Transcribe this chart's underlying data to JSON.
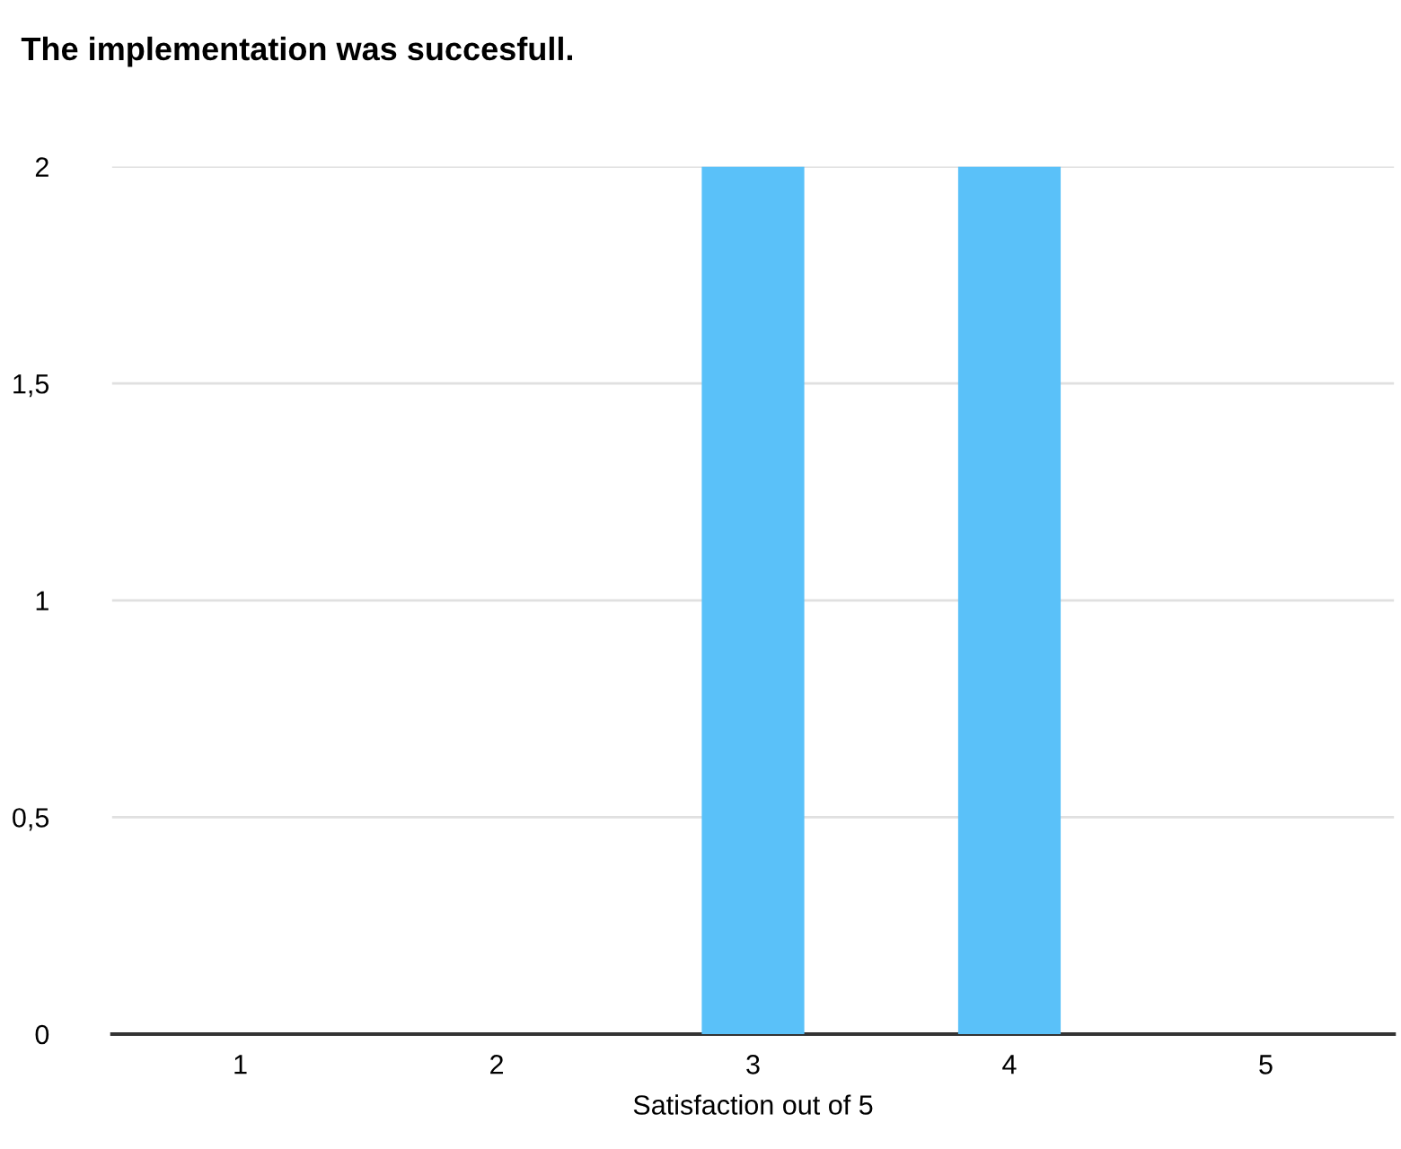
{
  "chart_data": {
    "type": "bar",
    "title": "The implementation was succesfull.",
    "xlabel": "Satisfaction out of 5",
    "categories": [
      "1",
      "2",
      "3",
      "4",
      "5"
    ],
    "values": [
      0,
      0,
      2,
      2,
      0
    ],
    "color": "#5ac1f9",
    "ylim": [
      0,
      2
    ],
    "yticks": [
      0,
      {
        "value": 0.5,
        "label": "0,5"
      },
      1,
      {
        "value": 1.5,
        "label": "1,5"
      },
      2
    ],
    "grid": "y",
    "legend": false
  }
}
